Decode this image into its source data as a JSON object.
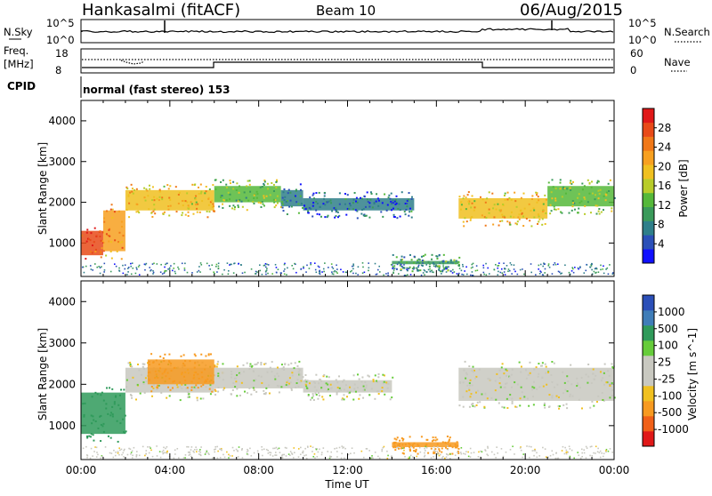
{
  "header": {
    "station": "Hankasalmi (fitACF)",
    "beam": "Beam 10",
    "date": "06/Aug/2015"
  },
  "noise_panel": {
    "left_label": "N.Sky",
    "right_label": "N.Search",
    "left_ticks": [
      "10^5",
      "10^0"
    ],
    "right_ticks": [
      "10^5",
      "10^0"
    ]
  },
  "freq_panel": {
    "left_label_1": "Freq.",
    "left_label_2": "[MHz]",
    "right_label": "Nave",
    "left_ticks": [
      "18",
      "8"
    ],
    "right_ticks": [
      "60",
      "0"
    ]
  },
  "cpid": {
    "label": "CPID",
    "mode": "normal (fast stereo) 153"
  },
  "x_axis": {
    "title": "Time UT",
    "ticks": [
      "00:00",
      "04:00",
      "08:00",
      "12:00",
      "16:00",
      "20:00",
      "00:00"
    ]
  },
  "chart_data": [
    {
      "type": "heatmap",
      "name": "power",
      "ylabel": "Slant Range [km]",
      "xlim": [
        "00:00",
        "24:00"
      ],
      "ylim": [
        180,
        4500
      ],
      "yticks": [
        "1000",
        "2000",
        "3000",
        "4000"
      ],
      "colorbar": {
        "label": "Power [dB]",
        "ticks": [
          "4",
          "8",
          "12",
          "16",
          "20",
          "24",
          "28"
        ],
        "colors": [
          "#1010ff",
          "#2b50b8",
          "#2f7f8a",
          "#3a9a5a",
          "#55b83a",
          "#b8cc2a",
          "#f0c020",
          "#f7a020",
          "#f07818",
          "#e84a18",
          "#e01818"
        ],
        "range": [
          0,
          32
        ]
      },
      "regions": [
        {
          "t0": 0.0,
          "t1": 1.0,
          "r0": 700,
          "r1": 1300,
          "v": 28
        },
        {
          "t0": 1.0,
          "t1": 2.0,
          "r0": 800,
          "r1": 1800,
          "v": 22
        },
        {
          "t0": 2.0,
          "t1": 6.0,
          "r0": 1800,
          "r1": 2300,
          "v": 20
        },
        {
          "t0": 6.0,
          "t1": 9.0,
          "r0": 2000,
          "r1": 2400,
          "v": 14
        },
        {
          "t0": 9.0,
          "t1": 10.0,
          "r0": 1900,
          "r1": 2300,
          "v": 8
        },
        {
          "t0": 10.0,
          "t1": 15.0,
          "r0": 1800,
          "r1": 2100,
          "v": 6
        },
        {
          "t0": 14.0,
          "t1": 17.0,
          "r0": 480,
          "r1": 560,
          "v": 10
        },
        {
          "t0": 17.0,
          "t1": 21.0,
          "r0": 1600,
          "r1": 2100,
          "v": 20
        },
        {
          "t0": 21.0,
          "t1": 24.0,
          "r0": 1900,
          "r1": 2400,
          "v": 14
        }
      ]
    },
    {
      "type": "heatmap",
      "name": "velocity",
      "ylabel": "Slant Range [km]",
      "xlim": [
        "00:00",
        "24:00"
      ],
      "ylim": [
        180,
        4500
      ],
      "yticks": [
        "1000",
        "2000",
        "3000",
        "4000"
      ],
      "colorbar": {
        "label": "Velocity [m s^-1]",
        "ticks": [
          "1000",
          "500",
          "100",
          "25",
          "-25",
          "-100",
          "-500",
          "-1000"
        ],
        "colors": [
          "#2b4fb8",
          "#3f7db8",
          "#2f9a5a",
          "#66cc3a",
          "#c8c8c0",
          "#c8c8c0",
          "#f0c020",
          "#f79a20",
          "#f06018",
          "#e01818"
        ]
      },
      "regions": [
        {
          "t0": 0.0,
          "t1": 2.0,
          "r0": 800,
          "r1": 1800,
          "v": 100
        },
        {
          "t0": 2.0,
          "t1": 6.0,
          "r0": 1800,
          "r1": 2400,
          "v": 0
        },
        {
          "t0": 3.0,
          "t1": 6.0,
          "r0": 2000,
          "r1": 2600,
          "v": -300
        },
        {
          "t0": 6.0,
          "t1": 10.0,
          "r0": 1900,
          "r1": 2400,
          "v": 0
        },
        {
          "t0": 10.0,
          "t1": 14.0,
          "r0": 1800,
          "r1": 2100,
          "v": 0
        },
        {
          "t0": 14.0,
          "t1": 17.0,
          "r0": 480,
          "r1": 600,
          "v": -300
        },
        {
          "t0": 17.0,
          "t1": 24.0,
          "r0": 1600,
          "r1": 2400,
          "v": 0
        }
      ]
    }
  ]
}
